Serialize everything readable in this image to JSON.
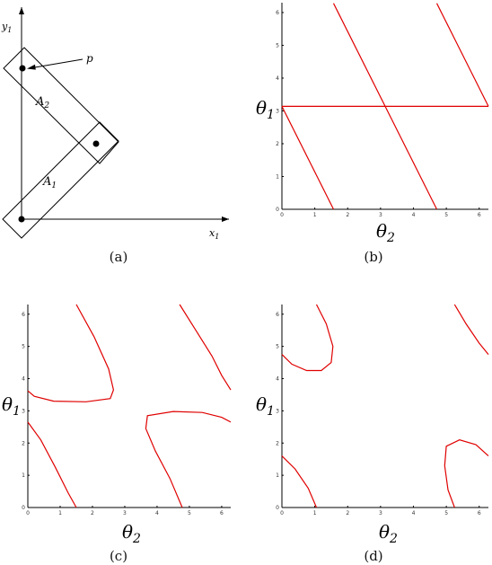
{
  "panel_a": {
    "caption": "(a)",
    "x_label": "x",
    "x_sub": "1",
    "y_label": "y",
    "y_sub": "1",
    "point_label": "p",
    "link2_label": "A",
    "link2_sub": "2",
    "link1_label": "A",
    "link1_sub": "1"
  },
  "panels": [
    {
      "id": "b",
      "caption": "(b)",
      "y_label": "θ",
      "y_sub": "1",
      "x_label": "θ",
      "x_sub": "2",
      "x_ticks": [
        "0",
        "1",
        "2",
        "3",
        "4",
        "5",
        "6"
      ],
      "y_ticks": [
        "0",
        "1",
        "2",
        "3",
        "4",
        "5",
        "6"
      ],
      "curves": [
        [
          [
            0,
            3.14
          ],
          [
            6.28,
            3.14
          ]
        ],
        [
          [
            0,
            3.14
          ],
          [
            1.57,
            0
          ]
        ],
        [
          [
            1.57,
            6.28
          ],
          [
            4.71,
            0
          ]
        ],
        [
          [
            4.71,
            6.28
          ],
          [
            6.28,
            3.14
          ]
        ]
      ]
    },
    {
      "id": "c",
      "caption": "(c)",
      "y_label": "θ",
      "y_sub": "1",
      "x_label": "θ",
      "x_sub": "2",
      "x_ticks": [
        "0",
        "1",
        "2",
        "3",
        "4",
        "5",
        "6"
      ],
      "y_ticks": [
        "0",
        "1",
        "2",
        "3",
        "4",
        "5",
        "6"
      ],
      "curves": [
        [
          [
            1.5,
            6.3
          ],
          [
            2.05,
            5.3
          ],
          [
            2.5,
            4.3
          ],
          [
            2.65,
            3.65
          ],
          [
            2.55,
            3.38
          ],
          [
            1.8,
            3.28
          ],
          [
            0.8,
            3.3
          ],
          [
            0.2,
            3.45
          ],
          [
            0,
            3.62
          ]
        ],
        [
          [
            0,
            2.65
          ],
          [
            0.4,
            2.1
          ],
          [
            0.85,
            1.25
          ],
          [
            1.25,
            0.45
          ],
          [
            1.5,
            0
          ]
        ],
        [
          [
            4.7,
            6.3
          ],
          [
            5.2,
            5.5
          ],
          [
            5.7,
            4.7
          ],
          [
            6.0,
            4.1
          ],
          [
            6.28,
            3.65
          ]
        ],
        [
          [
            4.78,
            0
          ],
          [
            4.4,
            0.9
          ],
          [
            3.95,
            1.75
          ],
          [
            3.65,
            2.45
          ],
          [
            3.7,
            2.85
          ],
          [
            4.5,
            2.98
          ],
          [
            5.4,
            2.95
          ],
          [
            6.0,
            2.8
          ],
          [
            6.28,
            2.65
          ]
        ]
      ]
    },
    {
      "id": "d",
      "caption": "(d)",
      "y_label": "θ",
      "y_sub": "1",
      "x_label": "θ",
      "x_sub": "2",
      "x_ticks": [
        "0",
        "1",
        "2",
        "3",
        "4",
        "5",
        "6"
      ],
      "y_ticks": [
        "0",
        "1",
        "2",
        "3",
        "4",
        "5",
        "6"
      ],
      "curves": [
        [
          [
            1.05,
            6.3
          ],
          [
            1.35,
            5.7
          ],
          [
            1.55,
            5.0
          ],
          [
            1.5,
            4.5
          ],
          [
            1.2,
            4.25
          ],
          [
            0.75,
            4.25
          ],
          [
            0.3,
            4.45
          ],
          [
            0,
            4.75
          ]
        ],
        [
          [
            0,
            1.6
          ],
          [
            0.4,
            1.2
          ],
          [
            0.8,
            0.6
          ],
          [
            1.05,
            0
          ]
        ],
        [
          [
            5.25,
            0
          ],
          [
            5.05,
            0.55
          ],
          [
            4.95,
            1.3
          ],
          [
            5.0,
            1.9
          ],
          [
            5.4,
            2.1
          ],
          [
            5.9,
            1.95
          ],
          [
            6.28,
            1.6
          ]
        ],
        [
          [
            5.25,
            6.3
          ],
          [
            5.6,
            5.7
          ],
          [
            6.0,
            5.1
          ],
          [
            6.28,
            4.75
          ]
        ]
      ]
    }
  ]
}
